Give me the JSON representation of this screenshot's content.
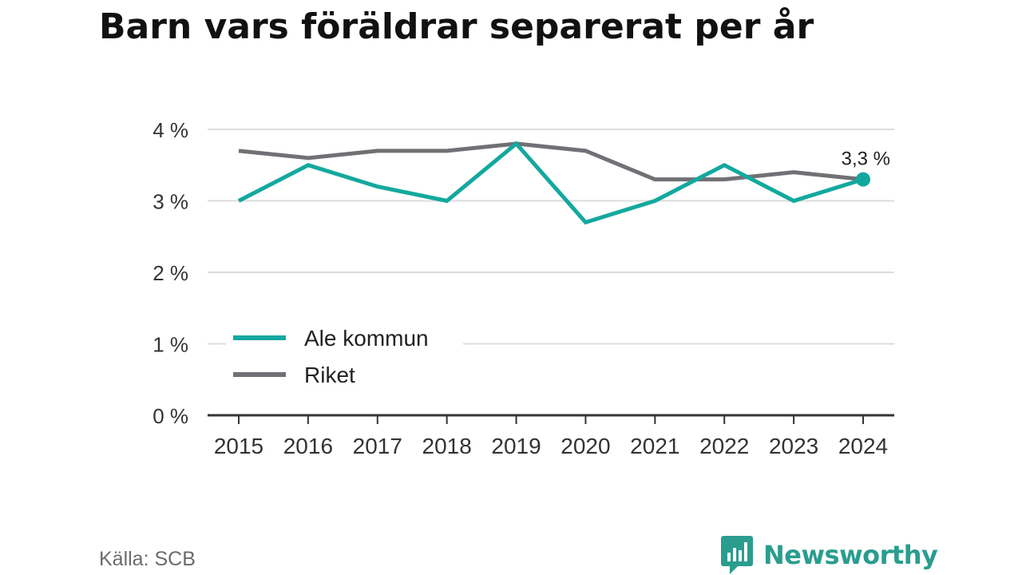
{
  "title": "Barn vars föräldrar separerat per år",
  "source": "Källa: SCB",
  "brand": {
    "name": "Newsworthy",
    "color": "#2a9d8f"
  },
  "chart_data": {
    "type": "line",
    "title": "Barn vars föräldrar separerat per år",
    "x": [
      "2015",
      "2016",
      "2017",
      "2018",
      "2019",
      "2020",
      "2021",
      "2022",
      "2023",
      "2024"
    ],
    "series": [
      {
        "name": "Ale kommun",
        "color": "#13a89e",
        "values": [
          3.0,
          3.5,
          3.2,
          3.0,
          3.8,
          2.7,
          3.0,
          3.5,
          3.0,
          3.3
        ]
      },
      {
        "name": "Riket",
        "color": "#717075",
        "values": [
          3.7,
          3.6,
          3.7,
          3.7,
          3.8,
          3.7,
          3.3,
          3.3,
          3.4,
          3.3
        ]
      }
    ],
    "ylim": [
      0,
      4
    ],
    "yticks": [
      0,
      1,
      2,
      3,
      4
    ],
    "ytick_labels": [
      "0 %",
      "1 %",
      "2 %",
      "3 %",
      "4 %"
    ],
    "end_label": "3,3 %",
    "grid": true,
    "legend_position": "bottom-left"
  }
}
